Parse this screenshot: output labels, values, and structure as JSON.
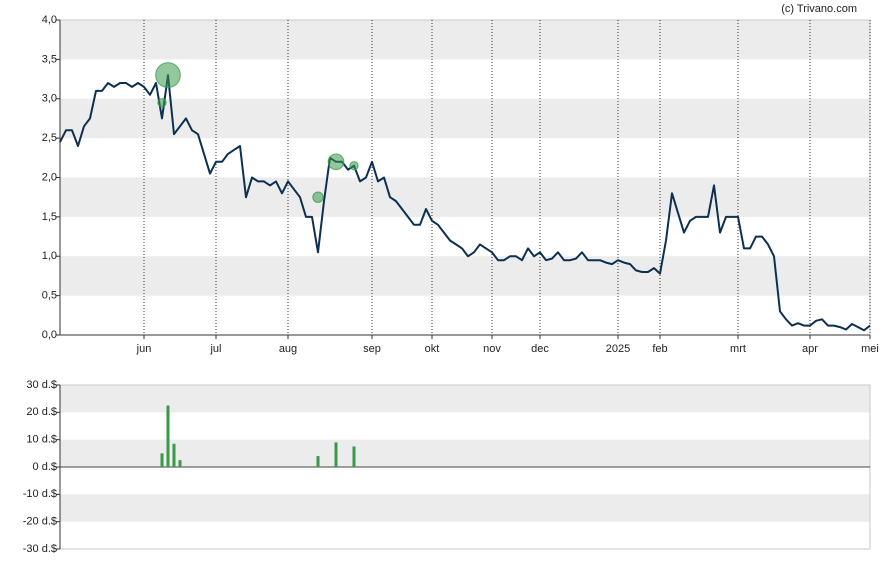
{
  "credit": "(c) Trivano.com",
  "chart_data": [
    {
      "type": "line",
      "color": "#0d3050",
      "categories": [
        null,
        null,
        null,
        null,
        null,
        null,
        null,
        null,
        null,
        null,
        null,
        null,
        null,
        null,
        "jun",
        null,
        null,
        null,
        null,
        null,
        null,
        null,
        null,
        null,
        null,
        null,
        "jul",
        null,
        null,
        null,
        null,
        null,
        null,
        null,
        null,
        null,
        null,
        null,
        "aug",
        null,
        null,
        null,
        null,
        null,
        null,
        null,
        null,
        null,
        null,
        null,
        null,
        null,
        "sep",
        null,
        null,
        null,
        null,
        null,
        null,
        null,
        null,
        null,
        "okt",
        null,
        null,
        null,
        null,
        null,
        null,
        null,
        null,
        null,
        "nov",
        null,
        null,
        null,
        null,
        null,
        null,
        null,
        "dec",
        null,
        null,
        null,
        null,
        null,
        null,
        null,
        null,
        null,
        null,
        null,
        null,
        "2025",
        null,
        null,
        null,
        null,
        null,
        null,
        "feb",
        null,
        null,
        null,
        null,
        null,
        null,
        null,
        null,
        null,
        null,
        null,
        null,
        "mrt",
        null,
        null,
        null,
        null,
        null,
        null,
        null,
        null,
        null,
        null,
        null,
        "apr",
        null,
        null,
        null,
        null,
        null,
        null,
        null,
        null,
        null,
        "mei"
      ],
      "values": [
        2.45,
        2.6,
        2.6,
        2.4,
        2.65,
        2.75,
        3.1,
        3.1,
        3.2,
        3.15,
        3.2,
        3.2,
        3.15,
        3.2,
        3.15,
        3.05,
        3.2,
        2.75,
        3.3,
        2.55,
        2.65,
        2.75,
        2.6,
        2.55,
        2.3,
        2.05,
        2.2,
        2.2,
        2.3,
        2.35,
        2.4,
        1.75,
        2.0,
        1.95,
        1.95,
        1.9,
        1.95,
        1.8,
        1.95,
        1.85,
        1.75,
        1.5,
        1.5,
        1.05,
        1.7,
        2.25,
        2.2,
        2.2,
        2.1,
        2.15,
        1.95,
        2.0,
        2.2,
        1.95,
        2.0,
        1.75,
        1.7,
        1.6,
        1.5,
        1.4,
        1.4,
        1.6,
        1.45,
        1.4,
        1.3,
        1.2,
        1.15,
        1.1,
        1.0,
        1.05,
        1.15,
        1.1,
        1.05,
        0.95,
        0.95,
        1.0,
        1.0,
        0.95,
        1.1,
        1.0,
        1.05,
        0.95,
        0.97,
        1.05,
        0.95,
        0.95,
        0.97,
        1.05,
        0.95,
        0.95,
        0.95,
        0.92,
        0.9,
        0.95,
        0.92,
        0.9,
        0.82,
        0.8,
        0.8,
        0.85,
        0.78,
        1.2,
        1.8,
        1.55,
        1.3,
        1.45,
        1.5,
        1.5,
        1.5,
        1.9,
        1.3,
        1.5,
        1.5,
        1.5,
        1.1,
        1.1,
        1.25,
        1.25,
        1.15,
        1.0,
        0.3,
        0.2,
        0.12,
        0.15,
        0.12,
        0.12,
        0.18,
        0.2,
        0.12,
        0.12,
        0.1,
        0.07,
        0.14,
        0.1,
        0.06,
        0.12
      ],
      "bubble_color": "#3a9a4a",
      "bubble_values": [
        null,
        null,
        null,
        null,
        null,
        null,
        null,
        null,
        null,
        null,
        null,
        null,
        null,
        null,
        null,
        null,
        null,
        2.95,
        3.3,
        null,
        null,
        null,
        null,
        null,
        null,
        null,
        null,
        null,
        null,
        null,
        null,
        null,
        null,
        null,
        null,
        null,
        null,
        null,
        null,
        null,
        null,
        null,
        null,
        1.75,
        null,
        null,
        2.2,
        null,
        null,
        2.15,
        null,
        null,
        null,
        null,
        null,
        null,
        null,
        null,
        null,
        null,
        null,
        null,
        null,
        null,
        null,
        null,
        null,
        null,
        null,
        null,
        null,
        null,
        null,
        null,
        null,
        null,
        null,
        null,
        null,
        null,
        null,
        null,
        null,
        null,
        null,
        null,
        null,
        null,
        null,
        null,
        null,
        null,
        null,
        null,
        null,
        null,
        null,
        null,
        null,
        null,
        null,
        null,
        null,
        null,
        null,
        null,
        null,
        null,
        null,
        null,
        null,
        null,
        null,
        null,
        null,
        null,
        null,
        null,
        null,
        null,
        null,
        null,
        null,
        null,
        null,
        null,
        null,
        null,
        null,
        null,
        null,
        null,
        null,
        null,
        null,
        null
      ],
      "bubble_sizes": [
        null,
        null,
        null,
        null,
        null,
        null,
        null,
        null,
        null,
        null,
        null,
        null,
        null,
        null,
        null,
        null,
        null,
        2.5,
        22.5,
        null,
        null,
        null,
        null,
        null,
        null,
        null,
        null,
        null,
        null,
        null,
        null,
        null,
        null,
        null,
        null,
        null,
        null,
        null,
        null,
        null,
        null,
        null,
        null,
        4,
        null,
        null,
        9,
        null,
        null,
        2.5,
        null,
        null,
        null,
        null,
        null,
        null,
        null,
        null,
        null,
        null,
        null,
        null,
        null,
        null,
        null,
        null,
        null,
        null,
        null,
        null,
        null,
        null,
        null,
        null,
        null,
        null,
        null,
        null,
        null,
        null,
        null,
        null,
        null,
        null,
        null,
        null,
        null,
        null,
        null,
        null,
        null,
        null,
        null,
        null,
        null,
        null,
        null,
        null,
        null,
        null,
        null,
        null,
        null,
        null,
        null,
        null,
        null,
        null,
        null,
        null,
        null,
        null,
        null,
        null,
        null,
        null,
        null,
        null,
        null,
        null,
        null,
        null,
        null,
        null,
        null,
        null,
        null,
        null,
        null,
        null,
        null,
        null,
        null,
        null,
        null,
        null
      ],
      "ylim": [
        0,
        4
      ],
      "yticks": [
        {
          "value": 0,
          "label": "0,0"
        },
        {
          "value": 0.5,
          "label": "0,5"
        },
        {
          "value": 1,
          "label": "1,0"
        },
        {
          "value": 1.5,
          "label": "1,5"
        },
        {
          "value": 2,
          "label": "2,0"
        },
        {
          "value": 2.5,
          "label": "2,5"
        },
        {
          "value": 3,
          "label": "3,0"
        },
        {
          "value": 3.5,
          "label": "3,5"
        },
        {
          "value": 4,
          "label": "4,0"
        }
      ]
    },
    {
      "type": "bar",
      "color": "#3a9a4a",
      "values": [
        null,
        null,
        null,
        null,
        null,
        null,
        null,
        null,
        null,
        null,
        null,
        null,
        null,
        null,
        null,
        null,
        null,
        5,
        22.5,
        8.5,
        2.5,
        null,
        null,
        null,
        null,
        null,
        null,
        null,
        null,
        null,
        null,
        null,
        null,
        null,
        null,
        null,
        null,
        null,
        null,
        null,
        null,
        null,
        null,
        4,
        null,
        null,
        9,
        null,
        null,
        7.5,
        null,
        null,
        null,
        null,
        null,
        null,
        null,
        null,
        null,
        null,
        null,
        null,
        null,
        null,
        null,
        null,
        null,
        null,
        null,
        null,
        null,
        null,
        null,
        null,
        null,
        null,
        null,
        null,
        null,
        null,
        null,
        null,
        null,
        null,
        null,
        null,
        null,
        null,
        null,
        null,
        null,
        null,
        null,
        null,
        null,
        null,
        null,
        null,
        null,
        null,
        null,
        null,
        null,
        null,
        null,
        null,
        null,
        null,
        null,
        null,
        null,
        null,
        null,
        null,
        null,
        null,
        null,
        null,
        null,
        null,
        null,
        null,
        null,
        null,
        null,
        null,
        null,
        null,
        null,
        null,
        null,
        null,
        null,
        null,
        null,
        null
      ],
      "ylim": [
        -30,
        30
      ],
      "yticks": [
        {
          "value": -30,
          "label": "-30 d.$"
        },
        {
          "value": -20,
          "label": "-20 d.$"
        },
        {
          "value": -10,
          "label": "-10 d.$"
        },
        {
          "value": 0,
          "label": "0 d.$"
        },
        {
          "value": 10,
          "label": "10 d.$"
        },
        {
          "value": 20,
          "label": "20 d.$"
        },
        {
          "value": 30,
          "label": "30 d.$"
        }
      ]
    }
  ]
}
